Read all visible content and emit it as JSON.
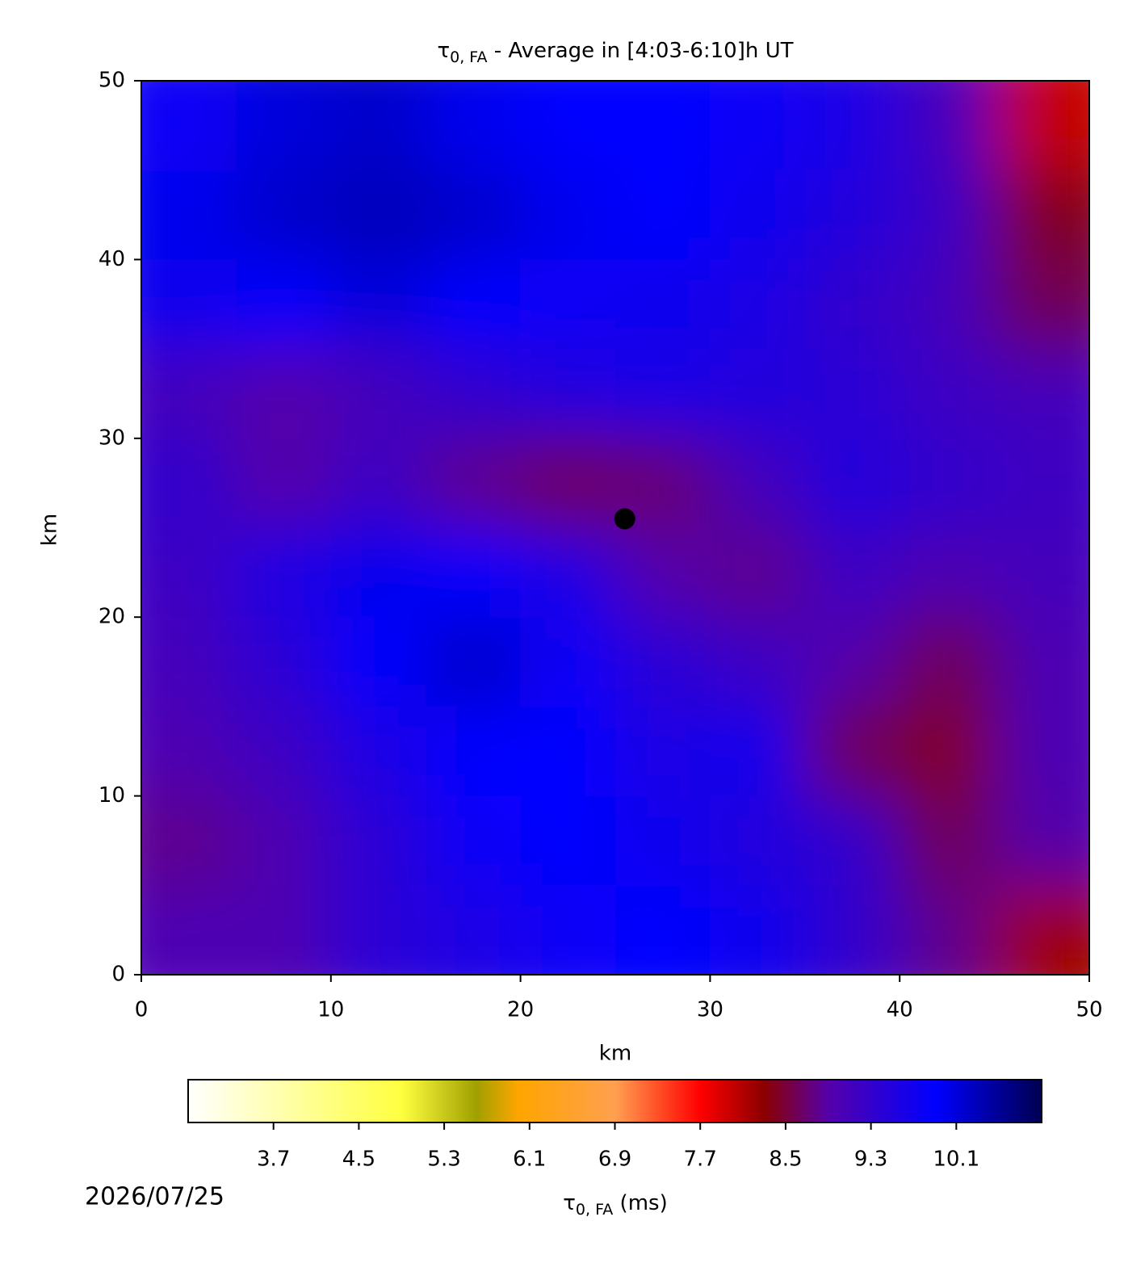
{
  "chart_data": {
    "type": "heatmap",
    "title": {
      "symbol": "τ",
      "subscript": "0, FA",
      "text": " - Average in [4:03-6:10]h UT"
    },
    "xlabel": "km",
    "ylabel": "km",
    "xlim": [
      0,
      50
    ],
    "ylim": [
      0,
      50
    ],
    "xticks": [
      0,
      10,
      20,
      30,
      40,
      50
    ],
    "yticks": [
      0,
      10,
      20,
      30,
      40,
      50
    ],
    "values": [
      [
        9.0,
        9.0,
        9.4,
        9.6,
        9.8,
        9.9,
        9.7,
        9.3,
        8.8,
        8.2
      ],
      [
        8.8,
        9.0,
        9.4,
        9.8,
        9.9,
        9.7,
        9.5,
        9.3,
        8.6,
        8.9
      ],
      [
        9.0,
        9.2,
        9.6,
        9.9,
        9.9,
        9.6,
        9.7,
        8.6,
        8.4,
        9.0
      ],
      [
        9.1,
        9.4,
        9.9,
        10.2,
        9.8,
        9.4,
        9.2,
        8.9,
        8.6,
        9.0
      ],
      [
        9.2,
        9.6,
        10.0,
        9.9,
        9.6,
        8.9,
        8.8,
        9.2,
        9.0,
        9.1
      ],
      [
        9.3,
        8.9,
        9.2,
        8.8,
        8.6,
        8.7,
        9.1,
        9.5,
        9.3,
        9.2
      ],
      [
        9.1,
        8.9,
        9.1,
        9.3,
        9.5,
        9.6,
        9.5,
        9.4,
        9.2,
        9.1
      ],
      [
        9.7,
        9.9,
        10.1,
        9.9,
        9.8,
        9.7,
        9.6,
        9.3,
        9.1,
        8.6
      ],
      [
        10.0,
        10.2,
        10.3,
        10.2,
        10.0,
        9.9,
        9.7,
        9.5,
        9.2,
        8.4
      ],
      [
        9.8,
        10.1,
        10.2,
        10.0,
        9.9,
        9.9,
        9.8,
        9.6,
        9.1,
        8.0
      ]
    ],
    "markers": [
      {
        "x": 25.5,
        "y": 25.5,
        "color": "#000000"
      }
    ],
    "colorbar": {
      "label": {
        "symbol": "τ",
        "subscript": "0, FA",
        "text": " (ms)"
      },
      "lim": [
        2.9,
        10.9
      ],
      "ticks": [
        3.7,
        4.5,
        5.3,
        6.1,
        6.9,
        7.7,
        8.5,
        9.3,
        10.1
      ],
      "colormap": [
        {
          "value": 2.9,
          "color": "#ffffff"
        },
        {
          "value": 4.9,
          "color": "#ffff40"
        },
        {
          "value": 5.6,
          "color": "#a0a000"
        },
        {
          "value": 6.0,
          "color": "#ffa500"
        },
        {
          "value": 6.9,
          "color": "#ffa050"
        },
        {
          "value": 7.7,
          "color": "#ff0000"
        },
        {
          "value": 8.3,
          "color": "#8b0000"
        },
        {
          "value": 8.9,
          "color": "#5500aa"
        },
        {
          "value": 9.9,
          "color": "#0000ff"
        },
        {
          "value": 10.9,
          "color": "#000050"
        }
      ]
    },
    "date": "2026/07/25"
  }
}
